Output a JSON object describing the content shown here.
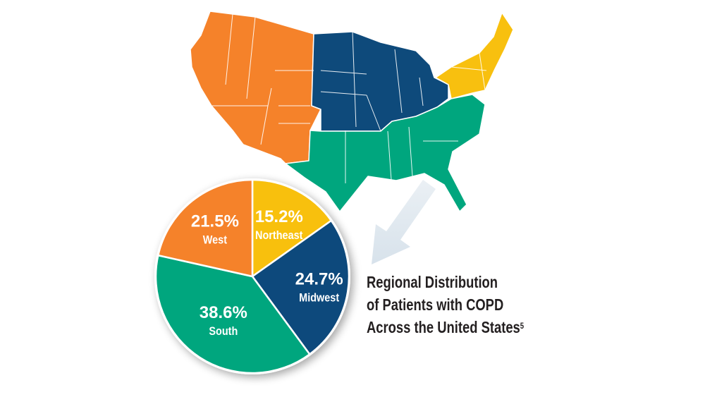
{
  "chart_data": {
    "type": "pie",
    "title": "Regional Distribution of Patients with COPD Across the United States",
    "title_lines": [
      "Regional Distribution",
      "of Patients with COPD",
      "Across the United States"
    ],
    "footnote": "5",
    "slices": [
      {
        "label": "Northeast",
        "value": 15.2,
        "display": "15.2%",
        "color": "#F8C00F"
      },
      {
        "label": "Midwest",
        "value": 24.7,
        "display": "24.7%",
        "color": "#0E4A7B"
      },
      {
        "label": "South",
        "value": 38.6,
        "display": "38.6%",
        "color": "#00A67E"
      },
      {
        "label": "West",
        "value": 21.5,
        "display": "21.5%",
        "color": "#F5822A"
      }
    ]
  },
  "map": {
    "regions": [
      {
        "name": "West",
        "color": "#F5822A"
      },
      {
        "name": "Midwest",
        "color": "#0E4A7B"
      },
      {
        "name": "Northeast",
        "color": "#F8C00F"
      },
      {
        "name": "South",
        "color": "#00A67E"
      }
    ],
    "arrow_color": "#D6E2EC"
  }
}
